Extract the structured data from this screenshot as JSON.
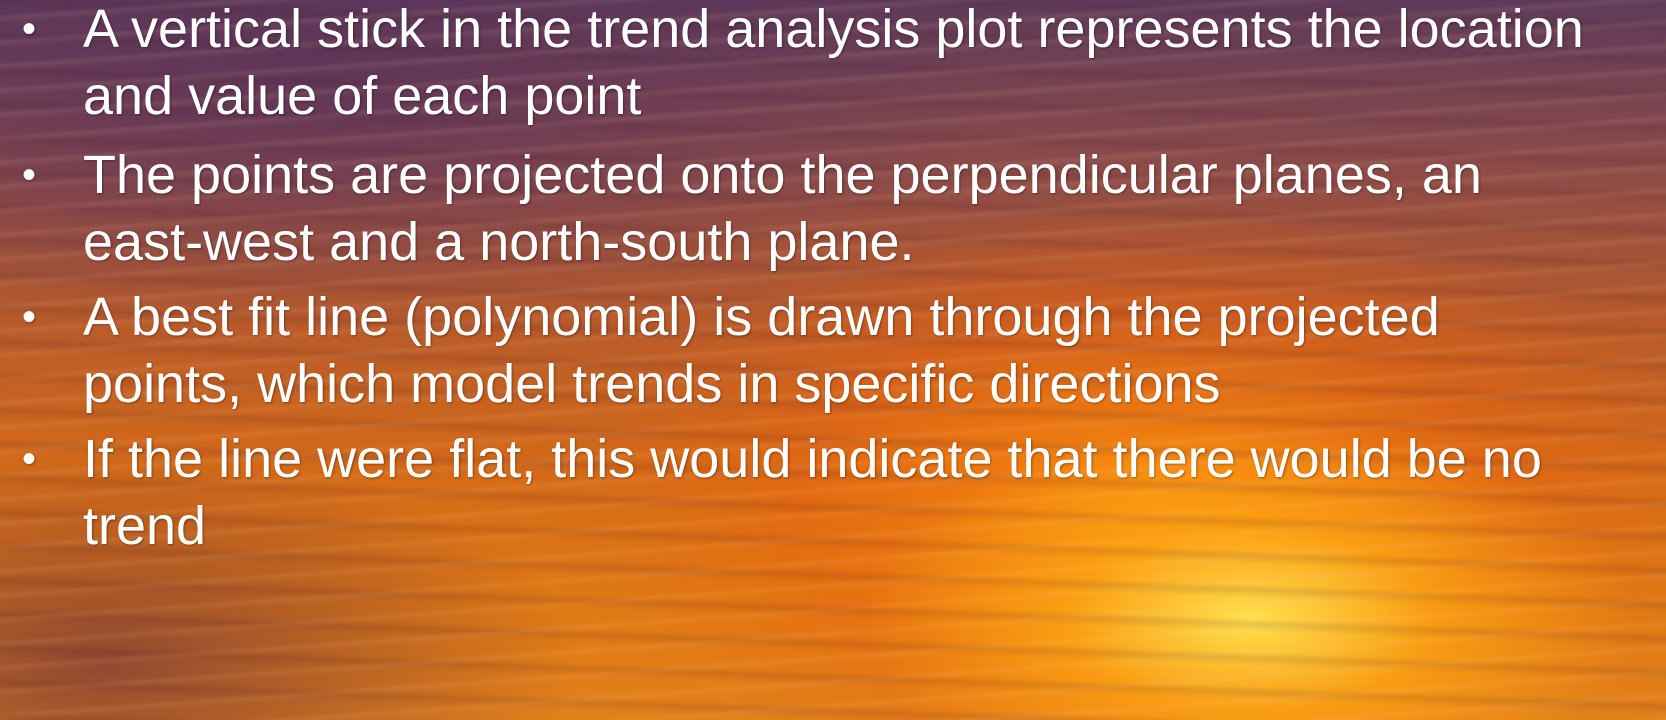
{
  "slide": {
    "bullet_symbol": "•",
    "bullets": [
      {
        "text": "A vertical stick in the trend analysis plot represents the location and value of each point"
      },
      {
        "text": "The points are projected onto the perpendicular planes, an east-west and a north-south plane."
      },
      {
        "text": "A best fit line (polynomial) is drawn through the projected points, which model trends in specific directions"
      },
      {
        "text": "If the line were flat, this would indicate that there would be no trend"
      }
    ]
  }
}
